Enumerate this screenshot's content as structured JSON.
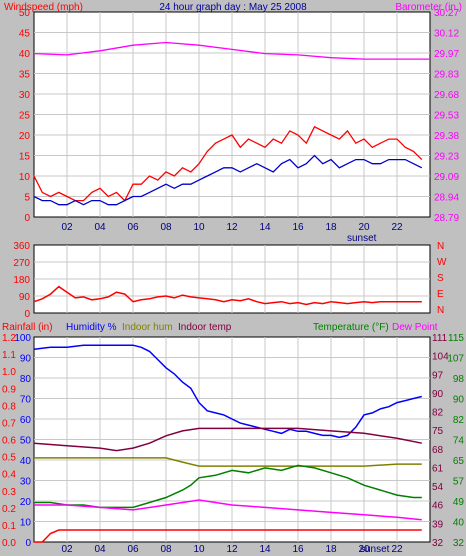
{
  "chart_data": [
    {
      "type": "line",
      "title": "24 hour graph day : May 25 2008",
      "left_axis_label": "Windspeed (mph)",
      "right_axis_label": "Barometer (in.)",
      "x_tick_labels": [
        "02",
        "04",
        "06",
        "08",
        "10",
        "12",
        "14",
        "16",
        "18",
        "20",
        "22"
      ],
      "x_annotation": "sunset",
      "left_ylim": [
        0,
        50
      ],
      "left_ticks": [
        "0",
        "5",
        "10",
        "15",
        "20",
        "25",
        "30",
        "35",
        "40",
        "45",
        "50"
      ],
      "right_ylim": [
        28.79,
        30.27
      ],
      "right_ticks": [
        "28.79",
        "28.94",
        "29.09",
        "29.23",
        "29.38",
        "29.53",
        "29.68",
        "29.83",
        "29.97",
        "30.12",
        "30.27"
      ],
      "grid": true,
      "series": [
        {
          "name": "Windspeed",
          "axis": "left",
          "color": "#ff0000",
          "x": [
            0,
            0.5,
            1,
            1.5,
            2,
            2.5,
            3,
            3.5,
            4,
            4.5,
            5,
            5.5,
            6,
            6.5,
            7,
            7.5,
            8,
            8.5,
            9,
            9.5,
            10,
            10.5,
            11,
            11.5,
            12,
            12.5,
            13,
            13.5,
            14,
            14.5,
            15,
            15.5,
            16,
            16.5,
            17,
            17.5,
            18,
            18.5,
            19,
            19.5,
            20,
            20.5,
            21,
            21.5,
            22,
            22.5,
            23,
            23.5
          ],
          "y": [
            10,
            6,
            5,
            6,
            5,
            4,
            4,
            6,
            7,
            5,
            6,
            4,
            8,
            8,
            10,
            9,
            11,
            10,
            12,
            11,
            13,
            16,
            18,
            19,
            20,
            17,
            19,
            18,
            17,
            19,
            18,
            21,
            20,
            18,
            22,
            21,
            20,
            19,
            21,
            18,
            19,
            17,
            18,
            19,
            19,
            17,
            16,
            14
          ]
        },
        {
          "name": "Wind gust",
          "axis": "left",
          "color": "#0000cc",
          "x": [
            0,
            0.5,
            1,
            1.5,
            2,
            2.5,
            3,
            3.5,
            4,
            4.5,
            5,
            5.5,
            6,
            6.5,
            7,
            7.5,
            8,
            8.5,
            9,
            9.5,
            10,
            10.5,
            11,
            11.5,
            12,
            12.5,
            13,
            13.5,
            14,
            14.5,
            15,
            15.5,
            16,
            16.5,
            17,
            17.5,
            18,
            18.5,
            19,
            19.5,
            20,
            20.5,
            21,
            21.5,
            22,
            22.5,
            23,
            23.5
          ],
          "y": [
            5,
            4,
            4,
            3,
            3,
            4,
            3,
            4,
            4,
            3,
            3,
            4,
            5,
            5,
            6,
            7,
            8,
            7,
            8,
            8,
            9,
            10,
            11,
            12,
            12,
            11,
            12,
            13,
            12,
            11,
            13,
            14,
            12,
            13,
            15,
            13,
            14,
            12,
            13,
            14,
            14,
            13,
            13,
            14,
            14,
            14,
            13,
            12
          ]
        },
        {
          "name": "Barometer",
          "axis": "right",
          "color": "#ff00ff",
          "x": [
            0,
            2,
            4,
            6,
            8,
            10,
            12,
            14,
            16,
            18,
            20,
            22,
            24
          ],
          "y": [
            29.97,
            29.96,
            29.99,
            30.03,
            30.05,
            30.03,
            30.0,
            29.97,
            29.96,
            29.94,
            29.93,
            29.93,
            29.93
          ]
        }
      ]
    },
    {
      "type": "line",
      "right_axis_label": "N W S E N",
      "compass_letters": [
        "N",
        "W",
        "S",
        "E",
        "N"
      ],
      "x_tick_labels": [],
      "ylim": [
        0,
        360
      ],
      "ticks": [
        "0",
        "90",
        "180",
        "270",
        "360"
      ],
      "grid": true,
      "series": [
        {
          "name": "Wind direction",
          "color": "#ff0000",
          "x": [
            0,
            0.5,
            1,
            1.5,
            2,
            2.5,
            3,
            3.5,
            4,
            4.5,
            5,
            5.5,
            6,
            6.5,
            7,
            7.5,
            8,
            8.5,
            9,
            9.5,
            10,
            10.5,
            11,
            11.5,
            12,
            12.5,
            13,
            13.5,
            14,
            14.5,
            15,
            15.5,
            16,
            16.5,
            17,
            17.5,
            18,
            18.5,
            19,
            19.5,
            20,
            20.5,
            21,
            21.5,
            22,
            22.5,
            23,
            23.5
          ],
          "y": [
            60,
            75,
            100,
            140,
            110,
            80,
            85,
            70,
            75,
            85,
            110,
            100,
            60,
            70,
            75,
            85,
            90,
            80,
            95,
            85,
            80,
            75,
            70,
            60,
            70,
            65,
            75,
            60,
            50,
            55,
            60,
            50,
            55,
            45,
            55,
            50,
            60,
            55,
            50,
            55,
            60,
            55,
            60,
            60,
            60,
            60,
            60,
            60
          ]
        }
      ]
    },
    {
      "type": "line",
      "legend_entries": [
        "Rainfall (in)",
        "Humidity %",
        "Indoor hum",
        "Indoor temp",
        "Temperature (°F)",
        "Dew Point"
      ],
      "x_tick_labels": [
        "02",
        "04",
        "06",
        "08",
        "10",
        "12",
        "14",
        "16",
        "18",
        "20",
        "22"
      ],
      "x_annotation": "sunset",
      "rain_ylim": [
        0,
        1.2
      ],
      "rain_ticks": [
        "0.0",
        "0.1",
        "0.2",
        "0.3",
        "0.4",
        "0.5",
        "0.6",
        "0.7",
        "0.8",
        "0.9",
        "1.0",
        "1.1",
        "1.2"
      ],
      "humidity_ylim": [
        0,
        100
      ],
      "humidity_ticks": [
        "0",
        "10",
        "20",
        "30",
        "40",
        "50",
        "60",
        "70",
        "80",
        "90",
        "100"
      ],
      "temp_ylim": [
        32,
        115
      ],
      "temp_ticks_left": [
        "32",
        "39",
        "46",
        "54",
        "61",
        "68",
        "75",
        "82",
        "90",
        "97",
        "104",
        "111"
      ],
      "temp_ticks_right": [
        "32",
        "40",
        "49",
        "57",
        "65",
        "74",
        "82",
        "90",
        "98",
        "107",
        "115"
      ],
      "grid": true,
      "series": [
        {
          "name": "Humidity %",
          "axis": "humidity",
          "color": "#0000ff",
          "x": [
            0,
            1,
            2,
            3,
            4,
            5,
            6,
            6.5,
            7,
            7.5,
            8,
            8.5,
            9,
            9.5,
            10,
            10.5,
            11,
            11.5,
            12,
            12.5,
            13,
            13.5,
            14,
            14.5,
            15,
            15.5,
            16,
            16.5,
            17,
            17.5,
            18,
            18.5,
            19,
            19.5,
            20,
            20.5,
            21,
            21.5,
            22,
            22.5,
            23,
            23.5
          ],
          "y": [
            94,
            95,
            95,
            96,
            96,
            96,
            96,
            95,
            93,
            89,
            85,
            82,
            78,
            75,
            68,
            64,
            63,
            62,
            60,
            58,
            57,
            56,
            55,
            54,
            53,
            55,
            54,
            54,
            53,
            52,
            52,
            51,
            52,
            56,
            62,
            63,
            65,
            66,
            68,
            69,
            70,
            71
          ]
        },
        {
          "name": "Indoor hum",
          "axis": "humidity",
          "color": "#808000",
          "x": [
            0,
            2,
            4,
            6,
            8,
            9,
            10,
            12,
            14,
            16,
            18,
            20,
            22,
            23.5
          ],
          "y": [
            41,
            41,
            41,
            41,
            41,
            39,
            37,
            37,
            37,
            37,
            37,
            37,
            38,
            38
          ]
        },
        {
          "name": "Indoor temp",
          "axis": "temp",
          "color": "#800040",
          "x": [
            0,
            2,
            4,
            5,
            6,
            7,
            8,
            9,
            10,
            12,
            14,
            16,
            18,
            20,
            22,
            23.5
          ],
          "y": [
            72,
            71,
            70,
            69,
            70,
            72,
            75,
            77,
            78,
            78,
            78,
            78,
            77,
            76,
            74,
            72
          ]
        },
        {
          "name": "Temperature (°F)",
          "axis": "temp",
          "color": "#008000",
          "x": [
            0,
            1,
            2,
            3,
            4,
            5,
            6,
            7,
            8,
            9,
            9.5,
            10,
            11,
            12,
            13,
            14,
            15,
            16,
            17,
            18,
            19,
            20,
            21,
            22,
            23,
            23.5
          ],
          "y": [
            48,
            48,
            47,
            47,
            46,
            46,
            46,
            48,
            50,
            53,
            55,
            58,
            59,
            61,
            60,
            62,
            61,
            63,
            62,
            60,
            58,
            55,
            53,
            51,
            50,
            50
          ]
        },
        {
          "name": "Dew Point",
          "axis": "temp",
          "color": "#ff00ff",
          "x": [
            0,
            2,
            4,
            6,
            8,
            9,
            10,
            11,
            12,
            14,
            16,
            18,
            20,
            22,
            23.5
          ],
          "y": [
            47,
            47,
            46,
            45,
            47,
            48,
            49,
            48,
            47,
            46,
            45,
            44,
            43,
            42,
            41
          ]
        },
        {
          "name": "Rainfall (in)",
          "axis": "rain",
          "color": "#ff0000",
          "x": [
            0,
            0.5,
            1,
            1.5,
            23.5
          ],
          "y": [
            0,
            0,
            0.05,
            0.07,
            0.07
          ]
        }
      ]
    }
  ]
}
